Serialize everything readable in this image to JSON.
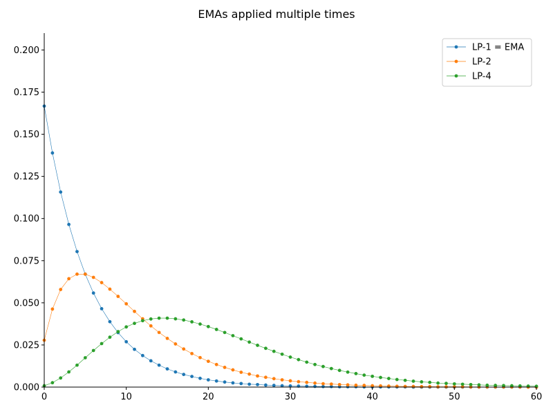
{
  "chart_data": {
    "type": "line",
    "title": "EMAs applied multiple times",
    "xlabel": "",
    "ylabel": "",
    "xlim": [
      0,
      60
    ],
    "ylim": [
      0,
      0.21
    ],
    "xticks": [
      0,
      10,
      20,
      30,
      40,
      50,
      60
    ],
    "yticks": [
      0.0,
      0.025,
      0.05,
      0.075,
      0.1,
      0.125,
      0.15,
      0.175,
      0.2
    ],
    "ytick_labels": [
      "0.000",
      "0.025",
      "0.050",
      "0.075",
      "0.100",
      "0.125",
      "0.150",
      "0.175",
      "0.200"
    ],
    "xtick_labels": [
      "0",
      "10",
      "20",
      "30",
      "40",
      "50",
      "60"
    ],
    "grid": false,
    "legend_placement": "top-right",
    "series": [
      {
        "name": "LP-1 = EMA",
        "color": "#1f77b4",
        "x": [
          0,
          1,
          2,
          3,
          4,
          5,
          6,
          7,
          8,
          9,
          10,
          11,
          12,
          13,
          14,
          15,
          16,
          17,
          18,
          19,
          20,
          21,
          22,
          23,
          24,
          25,
          26,
          27,
          28,
          29,
          30,
          31,
          32,
          33,
          34,
          35,
          36,
          37,
          38,
          39,
          40,
          41,
          42,
          43,
          44,
          45,
          46,
          47,
          48,
          49,
          50,
          51,
          52,
          53,
          54,
          55,
          56,
          57,
          58,
          59,
          60
        ],
        "values": [
          0.1667,
          0.1389,
          0.1157,
          0.0965,
          0.0804,
          0.067,
          0.0558,
          0.0465,
          0.0388,
          0.0323,
          0.0269,
          0.0224,
          0.0187,
          0.0156,
          0.013,
          0.0108,
          0.009,
          0.0075,
          0.0063,
          0.0052,
          0.0043,
          0.0036,
          0.003,
          0.0025,
          0.0021,
          0.0017,
          0.0015,
          0.0012,
          0.001,
          0.0008,
          0.0007,
          0.0006,
          0.0005,
          0.0004,
          0.0003,
          0.0003,
          0.0002,
          0.0002,
          0.0002,
          0.0001,
          0.0001,
          0.0001,
          0.0001,
          0.0001,
          0.0001,
          0.0,
          0.0,
          0.0,
          0.0,
          0.0,
          0.0,
          0.0,
          0.0,
          0.0,
          0.0,
          0.0,
          0.0,
          0.0,
          0.0,
          0.0,
          0.0
        ]
      },
      {
        "name": "LP-2",
        "color": "#ff7f0e",
        "x": [
          0,
          1,
          2,
          3,
          4,
          5,
          6,
          7,
          8,
          9,
          10,
          11,
          12,
          13,
          14,
          15,
          16,
          17,
          18,
          19,
          20,
          21,
          22,
          23,
          24,
          25,
          26,
          27,
          28,
          29,
          30,
          31,
          32,
          33,
          34,
          35,
          36,
          37,
          38,
          39,
          40,
          41,
          42,
          43,
          44,
          45,
          46,
          47,
          48,
          49,
          50,
          51,
          52,
          53,
          54,
          55,
          56,
          57,
          58,
          59,
          60
        ],
        "values": [
          0.0278,
          0.0463,
          0.0579,
          0.0643,
          0.067,
          0.067,
          0.0651,
          0.062,
          0.0581,
          0.0538,
          0.0494,
          0.0449,
          0.0405,
          0.0363,
          0.0324,
          0.0289,
          0.0256,
          0.0226,
          0.0199,
          0.0175,
          0.0153,
          0.0134,
          0.0117,
          0.0102,
          0.0088,
          0.0077,
          0.0066,
          0.0058,
          0.005,
          0.0043,
          0.0037,
          0.0032,
          0.0028,
          0.0024,
          0.002,
          0.0018,
          0.0015,
          0.0013,
          0.0011,
          0.001,
          0.0008,
          0.0007,
          0.0006,
          0.0005,
          0.0004,
          0.0004,
          0.0003,
          0.0003,
          0.0002,
          0.0002,
          0.0002,
          0.0002,
          0.0001,
          0.0001,
          0.0001,
          0.0001,
          0.0001,
          0.0001,
          0.0001,
          0.0,
          0.0
        ]
      },
      {
        "name": "LP-4",
        "color": "#2ca02c",
        "x": [
          0,
          1,
          2,
          3,
          4,
          5,
          6,
          7,
          8,
          9,
          10,
          11,
          12,
          13,
          14,
          15,
          16,
          17,
          18,
          19,
          20,
          21,
          22,
          23,
          24,
          25,
          26,
          27,
          28,
          29,
          30,
          31,
          32,
          33,
          34,
          35,
          36,
          37,
          38,
          39,
          40,
          41,
          42,
          43,
          44,
          45,
          46,
          47,
          48,
          49,
          50,
          51,
          52,
          53,
          54,
          55,
          56,
          57,
          58,
          59,
          60
        ],
        "values": [
          0.0008,
          0.0026,
          0.0054,
          0.009,
          0.013,
          0.0174,
          0.0217,
          0.0258,
          0.0296,
          0.0329,
          0.0357,
          0.0378,
          0.0394,
          0.0404,
          0.0409,
          0.0409,
          0.0405,
          0.0398,
          0.0387,
          0.0374,
          0.0359,
          0.0342,
          0.0324,
          0.0305,
          0.0286,
          0.0267,
          0.0248,
          0.023,
          0.0212,
          0.0195,
          0.0178,
          0.0163,
          0.0148,
          0.0134,
          0.0122,
          0.011,
          0.0099,
          0.0089,
          0.008,
          0.0071,
          0.0064,
          0.0057,
          0.0051,
          0.0045,
          0.004,
          0.0035,
          0.0031,
          0.0028,
          0.0024,
          0.0022,
          0.0019,
          0.0017,
          0.0015,
          0.0013,
          0.0011,
          0.001,
          0.0009,
          0.0008,
          0.0007,
          0.0006,
          0.0005
        ]
      }
    ]
  }
}
